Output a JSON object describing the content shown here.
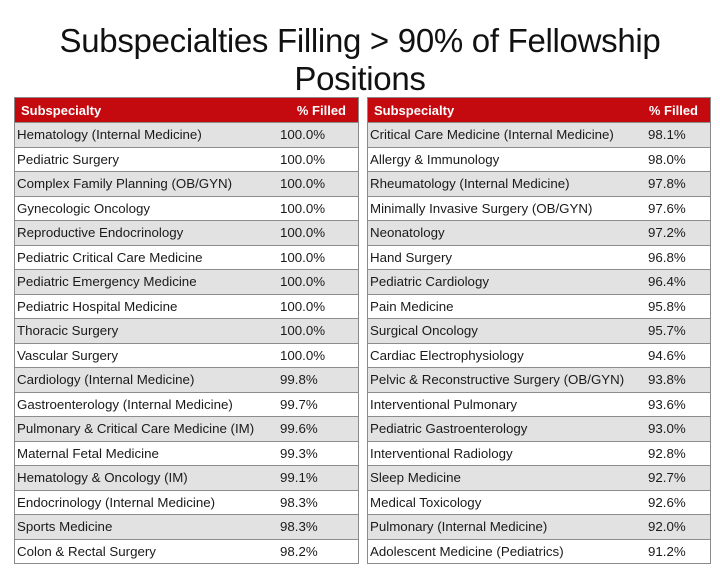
{
  "title": "Subspecialties Filling > 90% of Fellowship Positions",
  "colors": {
    "header_bg": "#c4090f",
    "row_shade": "#e2e2e2",
    "row_plain": "#ffffff",
    "border": "#8c8c8c"
  },
  "tables": [
    {
      "headers": {
        "name": "Subspecialty",
        "value": "% Filled"
      },
      "rows": [
        {
          "name": "Hematology (Internal Medicine)",
          "value": "100.0%"
        },
        {
          "name": "Pediatric Surgery",
          "value": "100.0%"
        },
        {
          "name": "Complex Family Planning (OB/GYN)",
          "value": "100.0%"
        },
        {
          "name": "Gynecologic Oncology",
          "value": "100.0%"
        },
        {
          "name": "Reproductive Endocrinology",
          "value": "100.0%"
        },
        {
          "name": "Pediatric Critical Care Medicine",
          "value": "100.0%"
        },
        {
          "name": "Pediatric Emergency Medicine",
          "value": "100.0%"
        },
        {
          "name": "Pediatric Hospital Medicine",
          "value": "100.0%"
        },
        {
          "name": "Thoracic Surgery",
          "value": "100.0%"
        },
        {
          "name": "Vascular Surgery",
          "value": "100.0%"
        },
        {
          "name": "Cardiology (Internal Medicine)",
          "value": "99.8%"
        },
        {
          "name": "Gastroenterology (Internal Medicine)",
          "value": "99.7%"
        },
        {
          "name": "Pulmonary & Critical Care Medicine (IM)",
          "value": "99.6%"
        },
        {
          "name": "Maternal Fetal Medicine",
          "value": "99.3%"
        },
        {
          "name": "Hematology & Oncology (IM)",
          "value": "99.1%"
        },
        {
          "name": "Endocrinology (Internal Medicine)",
          "value": "98.3%"
        },
        {
          "name": "Sports Medicine",
          "value": "98.3%"
        },
        {
          "name": "Colon & Rectal Surgery",
          "value": "98.2%"
        }
      ]
    },
    {
      "headers": {
        "name": "Subspecialty",
        "value": "% Filled"
      },
      "rows": [
        {
          "name": "Critical Care Medicine (Internal Medicine)",
          "value": "98.1%"
        },
        {
          "name": "Allergy & Immunology",
          "value": "98.0%"
        },
        {
          "name": "Rheumatology (Internal Medicine)",
          "value": "97.8%"
        },
        {
          "name": "Minimally Invasive Surgery (OB/GYN)",
          "value": "97.6%"
        },
        {
          "name": "Neonatology",
          "value": "97.2%"
        },
        {
          "name": "Hand Surgery",
          "value": "96.8%"
        },
        {
          "name": "Pediatric Cardiology",
          "value": "96.4%"
        },
        {
          "name": "Pain Medicine",
          "value": "95.8%"
        },
        {
          "name": "Surgical Oncology",
          "value": "95.7%"
        },
        {
          "name": "Cardiac Electrophysiology",
          "value": "94.6%"
        },
        {
          "name": "Pelvic & Reconstructive Surgery (OB/GYN)",
          "value": "93.8%"
        },
        {
          "name": "Interventional Pulmonary",
          "value": "93.6%"
        },
        {
          "name": "Pediatric Gastroenterology",
          "value": "93.0%"
        },
        {
          "name": "Interventional Radiology",
          "value": "92.8%"
        },
        {
          "name": "Sleep Medicine",
          "value": "92.7%"
        },
        {
          "name": "Medical Toxicology",
          "value": "92.6%"
        },
        {
          "name": "Pulmonary (Internal Medicine)",
          "value": "92.0%"
        },
        {
          "name": "Adolescent Medicine (Pediatrics)",
          "value": "91.2%"
        }
      ]
    }
  ],
  "chart_data": {
    "type": "table",
    "title": "Subspecialties Filling > 90% of Fellowship Positions",
    "columns": [
      "Subspecialty",
      "% Filled"
    ],
    "rows": [
      [
        "Hematology (Internal Medicine)",
        100.0
      ],
      [
        "Pediatric Surgery",
        100.0
      ],
      [
        "Complex Family Planning (OB/GYN)",
        100.0
      ],
      [
        "Gynecologic Oncology",
        100.0
      ],
      [
        "Reproductive Endocrinology",
        100.0
      ],
      [
        "Pediatric Critical Care Medicine",
        100.0
      ],
      [
        "Pediatric Emergency Medicine",
        100.0
      ],
      [
        "Pediatric Hospital Medicine",
        100.0
      ],
      [
        "Thoracic Surgery",
        100.0
      ],
      [
        "Vascular Surgery",
        100.0
      ],
      [
        "Cardiology (Internal Medicine)",
        99.8
      ],
      [
        "Gastroenterology (Internal Medicine)",
        99.7
      ],
      [
        "Pulmonary & Critical Care Medicine (IM)",
        99.6
      ],
      [
        "Maternal Fetal Medicine",
        99.3
      ],
      [
        "Hematology & Oncology (IM)",
        99.1
      ],
      [
        "Endocrinology (Internal Medicine)",
        98.3
      ],
      [
        "Sports Medicine",
        98.3
      ],
      [
        "Colon & Rectal Surgery",
        98.2
      ],
      [
        "Critical Care Medicine (Internal Medicine)",
        98.1
      ],
      [
        "Allergy & Immunology",
        98.0
      ],
      [
        "Rheumatology (Internal Medicine)",
        97.8
      ],
      [
        "Minimally Invasive Surgery (OB/GYN)",
        97.6
      ],
      [
        "Neonatology",
        97.2
      ],
      [
        "Hand Surgery",
        96.8
      ],
      [
        "Pediatric Cardiology",
        96.4
      ],
      [
        "Pain Medicine",
        95.8
      ],
      [
        "Surgical Oncology",
        95.7
      ],
      [
        "Cardiac Electrophysiology",
        94.6
      ],
      [
        "Pelvic & Reconstructive Surgery (OB/GYN)",
        93.8
      ],
      [
        "Interventional Pulmonary",
        93.6
      ],
      [
        "Pediatric Gastroenterology",
        93.0
      ],
      [
        "Interventional Radiology",
        92.8
      ],
      [
        "Sleep Medicine",
        92.7
      ],
      [
        "Medical Toxicology",
        92.6
      ],
      [
        "Pulmonary (Internal Medicine)",
        92.0
      ],
      [
        "Adolescent Medicine (Pediatrics)",
        91.2
      ]
    ]
  }
}
